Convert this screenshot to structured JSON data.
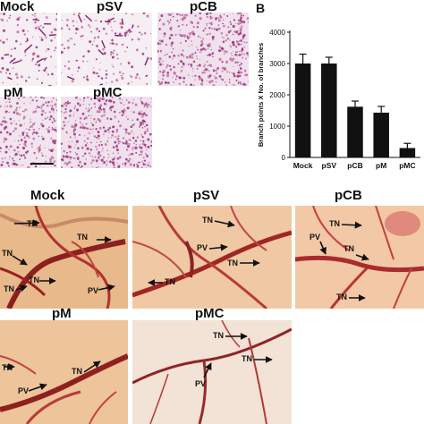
{
  "figure": {
    "panel_b_letter": "B",
    "top_tiles": [
      "Mock",
      "pSV",
      "pCB",
      "pM",
      "pMC"
    ],
    "bottom_tiles": [
      "Mock",
      "pSV",
      "pCB",
      "pM",
      "pMC"
    ],
    "annotations": {
      "tn": "TN",
      "pv": "PV"
    }
  },
  "chart_data": {
    "type": "bar",
    "categories": [
      "Mock",
      "pSV",
      "pCB",
      "pM",
      "pMC"
    ],
    "values": [
      3000,
      3000,
      1620,
      1430,
      300
    ],
    "errors": [
      300,
      200,
      180,
      200,
      150
    ],
    "ylabel": "Branch points X No. of branches",
    "ylim": [
      0,
      4000
    ],
    "yticks": [
      "0",
      "1000",
      "2000",
      "3000",
      "4000"
    ],
    "bar_color": "#111111"
  }
}
